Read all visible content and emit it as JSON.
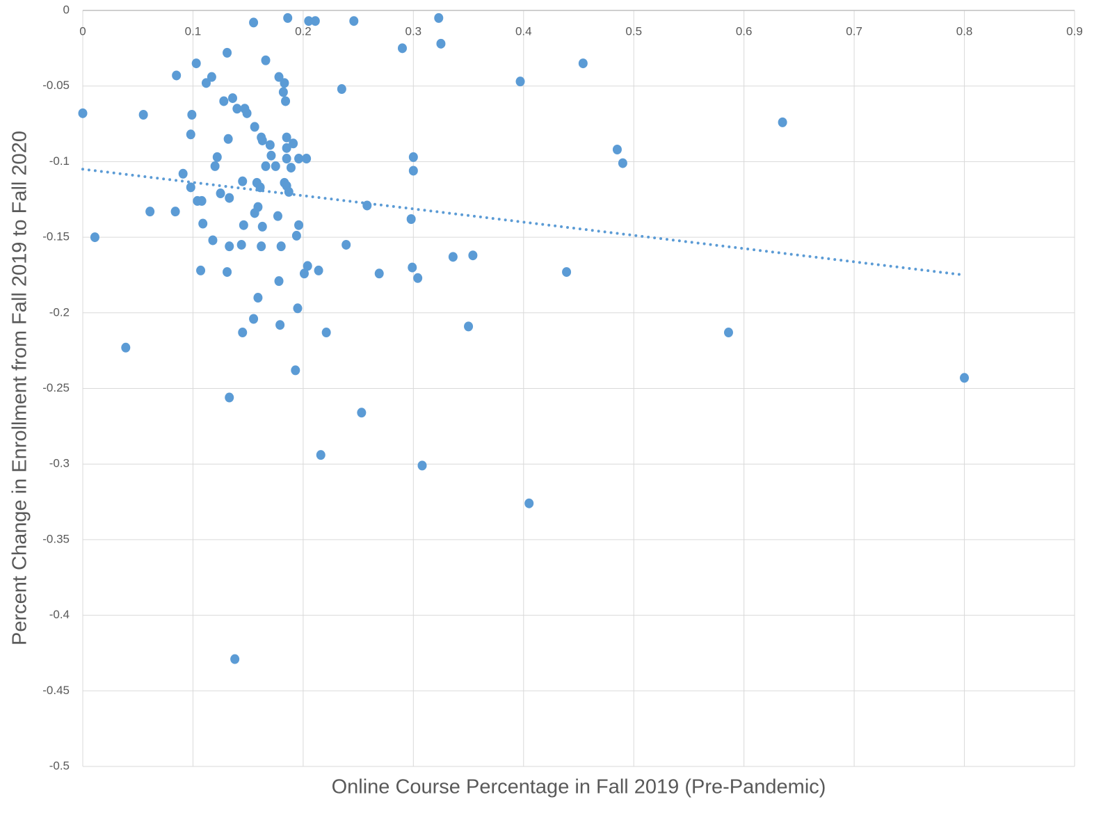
{
  "chart_data": {
    "type": "scatter",
    "xlabel": "Online Course Percentage in Fall 2019 (Pre-Pandemic)",
    "ylabel": "Percent Change in Enrollment from Fall 2019 to Fall 2020",
    "xlim": [
      0,
      0.9
    ],
    "ylim": [
      -0.5,
      0
    ],
    "xticks": [
      0,
      0.1,
      0.2,
      0.3,
      0.4,
      0.5,
      0.6,
      0.7,
      0.8,
      0.9
    ],
    "yticks": [
      0,
      -0.05,
      -0.1,
      -0.15,
      -0.2,
      -0.25,
      -0.3,
      -0.35,
      -0.4,
      -0.45,
      -0.5
    ],
    "grid": true,
    "color": "#5b9bd5",
    "x": [
      0,
      0.011,
      0.039,
      0.055,
      0.061,
      0.084,
      0.085,
      0.091,
      0.098,
      0.098,
      0.099,
      0.103,
      0.104,
      0.108,
      0.107,
      0.109,
      0.112,
      0.117,
      0.118,
      0.12,
      0.122,
      0.125,
      0.128,
      0.131,
      0.131,
      0.132,
      0.133,
      0.133,
      0.133,
      0.136,
      0.138,
      0.14,
      0.144,
      0.145,
      0.145,
      0.146,
      0.147,
      0.149,
      0.155,
      0.155,
      0.156,
      0.156,
      0.158,
      0.159,
      0.159,
      0.161,
      0.162,
      0.163,
      0.162,
      0.163,
      0.166,
      0.166,
      0.17,
      0.171,
      0.175,
      0.177,
      0.178,
      0.178,
      0.179,
      0.18,
      0.182,
      0.183,
      0.184,
      0.183,
      0.185,
      0.185,
      0.185,
      0.185,
      0.186,
      0.187,
      0.189,
      0.191,
      0.193,
      0.194,
      0.195,
      0.196,
      0.196,
      0.201,
      0.203,
      0.204,
      0.205,
      0.211,
      0.214,
      0.216,
      0.221,
      0.235,
      0.239,
      0.246,
      0.253,
      0.258,
      0.269,
      0.29,
      0.298,
      0.299,
      0.3,
      0.3,
      0.304,
      0.308,
      0.323,
      0.325,
      0.336,
      0.35,
      0.354,
      0.397,
      0.405,
      0.439,
      0.454,
      0.485,
      0.49,
      0.586,
      0.635,
      0.8
    ],
    "y": [
      -0.068,
      -0.15,
      -0.223,
      -0.069,
      -0.133,
      -0.133,
      -0.043,
      -0.108,
      -0.082,
      -0.117,
      -0.069,
      -0.035,
      -0.126,
      -0.126,
      -0.172,
      -0.141,
      -0.048,
      -0.044,
      -0.152,
      -0.103,
      -0.097,
      -0.121,
      -0.06,
      -0.028,
      -0.173,
      -0.085,
      -0.124,
      -0.156,
      -0.256,
      -0.058,
      -0.429,
      -0.065,
      -0.155,
      -0.113,
      -0.213,
      -0.142,
      -0.065,
      -0.068,
      -0.204,
      -0.008,
      -0.077,
      -0.134,
      -0.114,
      -0.13,
      -0.19,
      -0.117,
      -0.084,
      -0.086,
      -0.156,
      -0.143,
      -0.033,
      -0.103,
      -0.089,
      -0.096,
      -0.103,
      -0.136,
      -0.044,
      -0.179,
      -0.208,
      -0.156,
      -0.054,
      -0.048,
      -0.06,
      -0.114,
      -0.084,
      -0.091,
      -0.098,
      -0.116,
      -0.005,
      -0.12,
      -0.104,
      -0.088,
      -0.238,
      -0.149,
      -0.197,
      -0.098,
      -0.142,
      -0.174,
      -0.098,
      -0.169,
      -0.007,
      -0.007,
      -0.172,
      -0.294,
      -0.213,
      -0.052,
      -0.155,
      -0.007,
      -0.266,
      -0.129,
      -0.174,
      -0.025,
      -0.138,
      -0.17,
      -0.097,
      -0.106,
      -0.177,
      -0.301,
      -0.005,
      -0.022,
      -0.163,
      -0.209,
      -0.162,
      -0.047,
      -0.326,
      -0.173,
      -0.035,
      -0.092,
      -0.101,
      -0.213,
      -0.074,
      -0.243
    ],
    "trendline": {
      "x": [
        0,
        0.8
      ],
      "y": [
        -0.105,
        -0.175
      ]
    }
  }
}
